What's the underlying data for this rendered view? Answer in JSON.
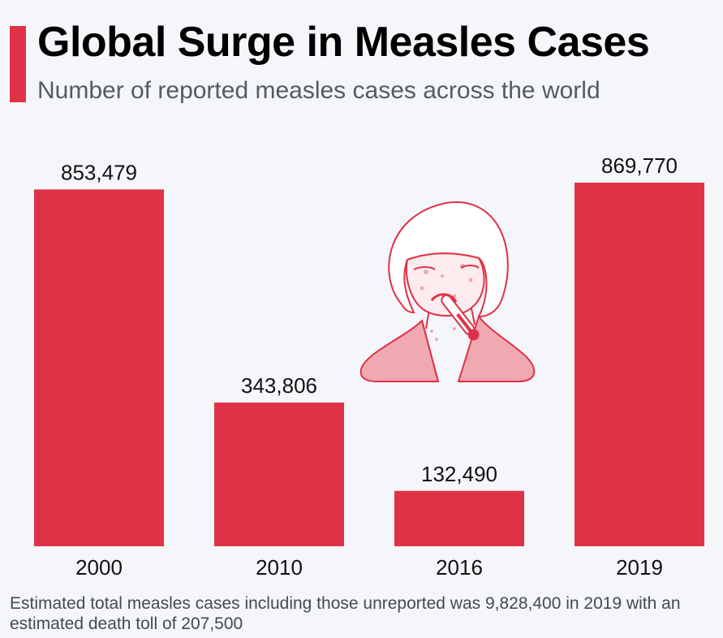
{
  "title": "Global Surge in Measles Cases",
  "subtitle": "Number of reported measles cases across the world",
  "footnote": "Estimated total measles cases including those unreported was 9,828,400 in 2019 with an estimated death toll of 207,500",
  "colors": {
    "accent": "#e03247",
    "bar": "#e03247",
    "illustration_stroke": "#e03247",
    "illustration_fill": "#f0a9b1"
  },
  "icons": [
    "sick-person-icon",
    "thermometer-icon"
  ],
  "chart_data": {
    "type": "bar",
    "categories": [
      "2000",
      "2010",
      "2016",
      "2019"
    ],
    "values": [
      853479,
      343806,
      132490,
      869770
    ],
    "value_labels": [
      "853,479",
      "343,806",
      "132,490",
      "869,770"
    ],
    "title": "",
    "xlabel": "",
    "ylabel": "",
    "ylim": [
      0,
      869770
    ],
    "grid": false,
    "legend": "none"
  }
}
